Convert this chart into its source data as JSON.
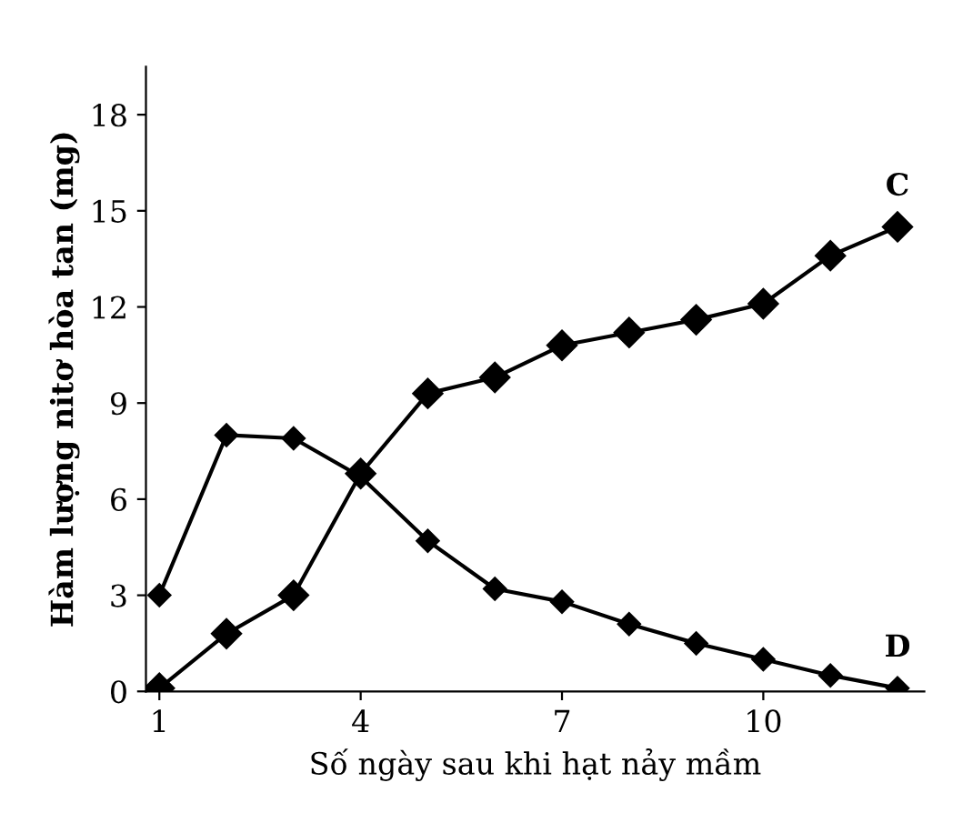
{
  "chart_data": {
    "type": "line",
    "xlabel": "Số ngày sau khi hạt nảy mầm",
    "ylabel": "Hàm lượng nitơ hòa tan (mg)",
    "x": [
      1,
      2,
      3,
      4,
      5,
      6,
      7,
      8,
      9,
      10,
      11,
      12
    ],
    "series": [
      {
        "name": "C",
        "color": "#000000",
        "values": [
          0.1,
          1.8,
          3,
          6.8,
          9.3,
          9.8,
          10.8,
          11.2,
          11.6,
          12.1,
          13.6,
          14.5
        ]
      },
      {
        "name": "D",
        "color": "#000000",
        "values": [
          3,
          8,
          7.9,
          6.7,
          4.7,
          3.2,
          2.8,
          2.1,
          1.5,
          1.0,
          0.5,
          0.1
        ]
      }
    ],
    "xlim": [
      0.8,
      12.4
    ],
    "ylim": [
      0,
      19.5
    ],
    "xticks": [
      1,
      4,
      7,
      10
    ],
    "yticks": [
      0,
      3,
      6,
      9,
      12,
      15,
      18
    ],
    "marker": "diamond",
    "line_style": "solid",
    "grid": false,
    "legend": false
  }
}
